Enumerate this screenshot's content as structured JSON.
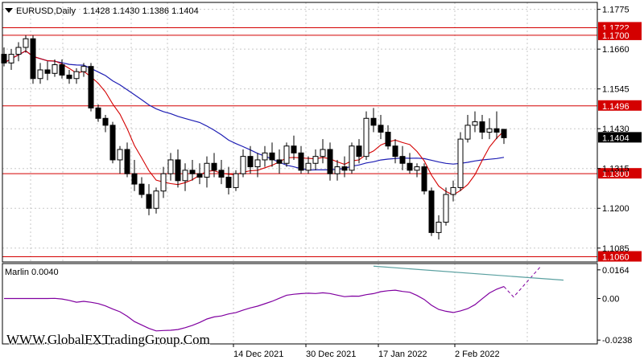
{
  "header": {
    "symbol_label": "EURUSD,Daily",
    "ohlc": "1.1428 1.1430 1.1386 1.1404"
  },
  "watermark": "WWW.GlobalFXTradingGroup.Com",
  "colors": {
    "up_candle": "#ffffff",
    "down_candle": "#000000",
    "ma_fast": "#d40000",
    "ma_slow": "#1e1eb4",
    "level_line": "#d40000",
    "oscillator": "#8000a0",
    "trendline": "#5aa0a0",
    "grid": "#c8c8c8"
  },
  "chart_data": [
    {
      "type": "line",
      "subtype": "candlestick",
      "ylim": [
        1.1045,
        1.1795
      ],
      "y_ticks": [
        "1.1775",
        "1.1660",
        "1.1545",
        "1.1430",
        "1.1315",
        "1.1200",
        "1.1085"
      ],
      "x_ticks": [
        "14 Dec 2021",
        "30 Dec 2021",
        "17 Jan 2022",
        "2 Feb 2022"
      ],
      "current_price": "1.1404",
      "levels": [
        {
          "value": 1.1722,
          "label": "1.1722"
        },
        {
          "value": 1.17,
          "label": "1.1700"
        },
        {
          "value": 1.1496,
          "label": "1.1496"
        },
        {
          "value": 1.13,
          "label": "1.1300"
        },
        {
          "value": 1.106,
          "label": "1.1060"
        }
      ],
      "candles": [
        [
          1.1645,
          1.1665,
          1.161,
          1.162
        ],
        [
          1.162,
          1.166,
          1.16,
          1.1645
        ],
        [
          1.1645,
          1.168,
          1.1625,
          1.1665
        ],
        [
          1.1665,
          1.17,
          1.165,
          1.169
        ],
        [
          1.169,
          1.17,
          1.156,
          1.1575
        ],
        [
          1.1575,
          1.162,
          1.156,
          1.16
        ],
        [
          1.16,
          1.1625,
          1.157,
          1.159
        ],
        [
          1.159,
          1.163,
          1.158,
          1.1615
        ],
        [
          1.1615,
          1.163,
          1.1575,
          1.1585
        ],
        [
          1.1585,
          1.16,
          1.156,
          1.1575
        ],
        [
          1.1575,
          1.1605,
          1.156,
          1.1595
        ],
        [
          1.1595,
          1.162,
          1.158,
          1.161
        ],
        [
          1.161,
          1.162,
          1.148,
          1.149
        ],
        [
          1.149,
          1.15,
          1.145,
          1.146
        ],
        [
          1.146,
          1.147,
          1.142,
          1.144
        ],
        [
          1.144,
          1.145,
          1.133,
          1.134
        ],
        [
          1.134,
          1.138,
          1.13,
          1.137
        ],
        [
          1.137,
          1.139,
          1.129,
          1.13
        ],
        [
          1.13,
          1.134,
          1.125,
          1.127
        ],
        [
          1.127,
          1.129,
          1.123,
          1.124
        ],
        [
          1.124,
          1.127,
          1.118,
          1.12
        ],
        [
          1.12,
          1.126,
          1.1185,
          1.125
        ],
        [
          1.125,
          1.132,
          1.123,
          1.13
        ],
        [
          1.13,
          1.136,
          1.128,
          1.134
        ],
        [
          1.134,
          1.137,
          1.126,
          1.128
        ],
        [
          1.128,
          1.133,
          1.125,
          1.131
        ],
        [
          1.131,
          1.134,
          1.128,
          1.13
        ],
        [
          1.13,
          1.133,
          1.127,
          1.129
        ],
        [
          1.129,
          1.135,
          1.126,
          1.133
        ],
        [
          1.133,
          1.136,
          1.129,
          1.131
        ],
        [
          1.131,
          1.134,
          1.127,
          1.129
        ],
        [
          1.129,
          1.132,
          1.124,
          1.126
        ],
        [
          1.126,
          1.131,
          1.125,
          1.13
        ],
        [
          1.13,
          1.137,
          1.129,
          1.135
        ],
        [
          1.135,
          1.138,
          1.13,
          1.132
        ],
        [
          1.132,
          1.136,
          1.129,
          1.134
        ],
        [
          1.134,
          1.138,
          1.132,
          1.136
        ],
        [
          1.136,
          1.139,
          1.132,
          1.134
        ],
        [
          1.134,
          1.137,
          1.13,
          1.133
        ],
        [
          1.133,
          1.139,
          1.132,
          1.138
        ],
        [
          1.138,
          1.141,
          1.134,
          1.136
        ],
        [
          1.136,
          1.138,
          1.13,
          1.131
        ],
        [
          1.131,
          1.135,
          1.13,
          1.133
        ],
        [
          1.133,
          1.137,
          1.131,
          1.135
        ],
        [
          1.135,
          1.14,
          1.133,
          1.137
        ],
        [
          1.137,
          1.139,
          1.128,
          1.13
        ],
        [
          1.13,
          1.134,
          1.128,
          1.132
        ],
        [
          1.132,
          1.135,
          1.129,
          1.131
        ],
        [
          1.131,
          1.139,
          1.13,
          1.138
        ],
        [
          1.138,
          1.14,
          1.133,
          1.135
        ],
        [
          1.135,
          1.148,
          1.134,
          1.146
        ],
        [
          1.146,
          1.149,
          1.142,
          1.144
        ],
        [
          1.144,
          1.147,
          1.14,
          1.142
        ],
        [
          1.142,
          1.144,
          1.137,
          1.138
        ],
        [
          1.138,
          1.14,
          1.133,
          1.135
        ],
        [
          1.135,
          1.138,
          1.131,
          1.133
        ],
        [
          1.133,
          1.136,
          1.13,
          1.131
        ],
        [
          1.131,
          1.133,
          1.129,
          1.132
        ],
        [
          1.132,
          1.133,
          1.124,
          1.125
        ],
        [
          1.125,
          1.126,
          1.112,
          1.113
        ],
        [
          1.113,
          1.118,
          1.111,
          1.116
        ],
        [
          1.116,
          1.126,
          1.115,
          1.124
        ],
        [
          1.124,
          1.128,
          1.122,
          1.126
        ],
        [
          1.126,
          1.142,
          1.125,
          1.14
        ],
        [
          1.14,
          1.147,
          1.139,
          1.144
        ],
        [
          1.144,
          1.148,
          1.142,
          1.145
        ],
        [
          1.145,
          1.147,
          1.14,
          1.142
        ],
        [
          1.142,
          1.146,
          1.14,
          1.143
        ],
        [
          1.143,
          1.148,
          1.14,
          1.142
        ],
        [
          1.1428,
          1.143,
          1.1386,
          1.1404
        ]
      ]
    },
    {
      "type": "line",
      "indicator_label": "Marlin 0.0040",
      "ylim": [
        -0.026,
        0.02
      ],
      "y_ticks": [
        "0.0164",
        "0.00",
        "-0.0238"
      ]
    }
  ]
}
